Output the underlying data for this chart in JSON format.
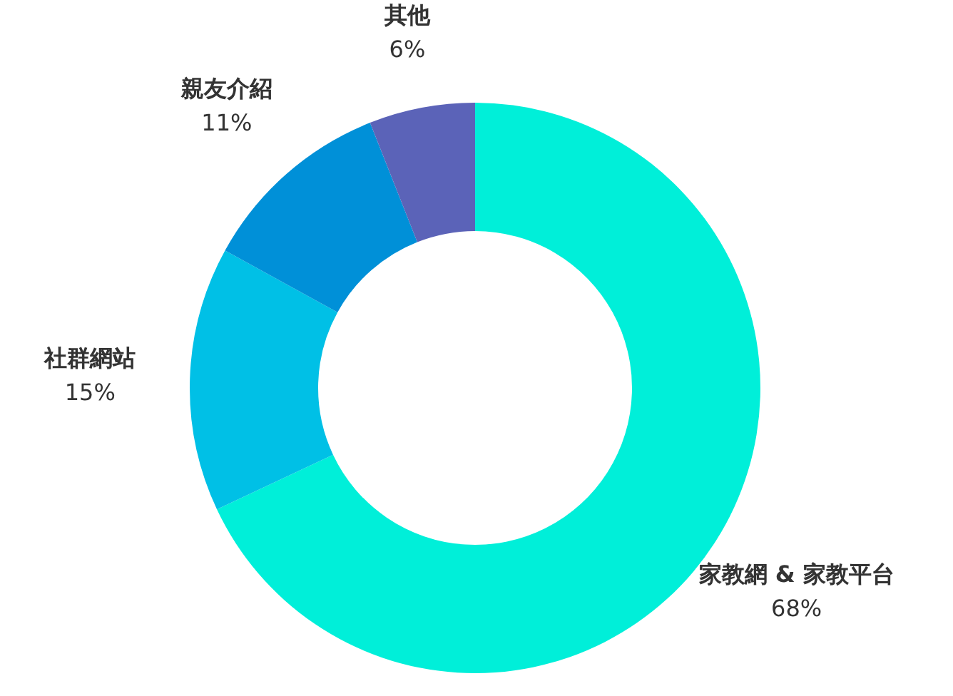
{
  "chart_data": {
    "type": "donut",
    "categories": [
      "家教網 & 家教平台",
      "社群網站",
      "親友介紹",
      "其他"
    ],
    "values": [
      68,
      15,
      11,
      6
    ],
    "colors": [
      "#00efd9",
      "#00c0e6",
      "#0090d8",
      "#5b63b8"
    ],
    "value_labels": [
      "68%",
      "15%",
      "11%",
      "6%"
    ],
    "legend": false
  }
}
